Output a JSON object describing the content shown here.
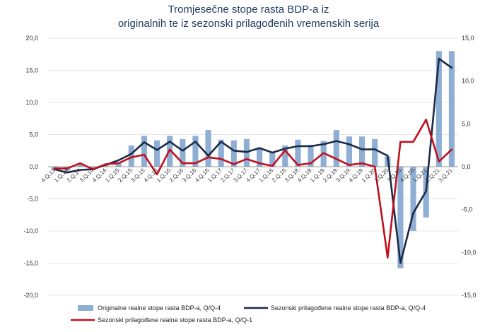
{
  "title": {
    "line1": "Tromjesečne stope rasta BDP-a iz",
    "line2": "originalnih te iz sezonski prilagođenih vremenskih serija"
  },
  "chart_data": {
    "type": "bar",
    "categories": [
      "4.Q.13.",
      "1.Q.14.",
      "2.Q.14.",
      "3.Q.14.",
      "4.Q.14.",
      "1.Q.15.",
      "2.Q.15.",
      "3.Q.15.",
      "4.Q.15.",
      "1.Q.16.",
      "2.Q.16.",
      "3.Q.16.",
      "4.Q.16.",
      "1.Q.17.",
      "2.Q.17.",
      "3.Q.17.",
      "4.Q.17.",
      "1.Q.18.",
      "2.Q.18.",
      "3.Q.18.",
      "4.Q.18.",
      "1.Q.19.",
      "2.Q.19.",
      "3.Q.19.",
      "4.Q.19.",
      "1.Q.20.",
      "2.Q.20.",
      "3.Q.20.",
      "4.Q.20.",
      "1.Q.21.",
      "2.Q.21.",
      "3.Q.21."
    ],
    "left_axis": {
      "ylim": [
        -20,
        20
      ],
      "ticks": [
        "20,0",
        "15,0",
        "10,0",
        "5,0",
        "0,0",
        "-5,0",
        "-10,0",
        "-15,0",
        "-20,0"
      ]
    },
    "right_axis": {
      "ylim": [
        -15,
        15
      ],
      "ticks": [
        "15,0",
        "10,0",
        "5,0",
        "0,0",
        "-5,0",
        "-10,0",
        "-15,0"
      ]
    },
    "series": [
      {
        "name": "Originalne realne stope rasta BDP-a, Q/Q-4",
        "type": "bar",
        "axis": "left",
        "color": "#8eaed4",
        "values": [
          -0.4,
          -0.6,
          0.4,
          -0.5,
          0.3,
          0.7,
          3.3,
          4.8,
          4.1,
          4.8,
          4.3,
          4.8,
          5.7,
          4.2,
          4.1,
          4.3,
          3.0,
          2.3,
          3.3,
          4.2,
          3.4,
          4.0,
          5.7,
          4.7,
          4.7,
          4.3,
          1.6,
          -15.8,
          -10.0,
          -7.9,
          18.0,
          18.0
        ]
      },
      {
        "name": "Sezonski prilagođene realne stope rasta BDP-a, Q/Q-4",
        "type": "line",
        "axis": "left",
        "color": "#1b2a48",
        "values": [
          -0.4,
          -0.9,
          -0.5,
          -0.4,
          0.3,
          1.0,
          2.0,
          3.8,
          2.6,
          3.9,
          2.5,
          3.9,
          1.7,
          3.9,
          2.5,
          2.3,
          2.9,
          2.2,
          2.8,
          3.2,
          3.2,
          3.5,
          4.0,
          3.5,
          2.7,
          2.7,
          1.7,
          -15.0,
          -7.2,
          -3.8,
          16.8,
          15.4
        ]
      },
      {
        "name": "Sezonski prilagođene realne stope rasta BDP-a, Q/Q-1",
        "type": "line",
        "axis": "right",
        "color": "#c0101e",
        "values": [
          -0.2,
          -0.2,
          0.4,
          -0.3,
          0.3,
          0.4,
          1.1,
          1.4,
          -0.9,
          2.0,
          0.4,
          0.4,
          1.1,
          0.9,
          0.3,
          0.9,
          0.4,
          0.1,
          1.9,
          0.2,
          0.4,
          1.6,
          0.9,
          0.2,
          0.4,
          0.0,
          -10.6,
          2.9,
          2.9,
          5.5,
          0.6,
          2.0
        ]
      }
    ],
    "grid": true,
    "legend_position": "bottom"
  }
}
